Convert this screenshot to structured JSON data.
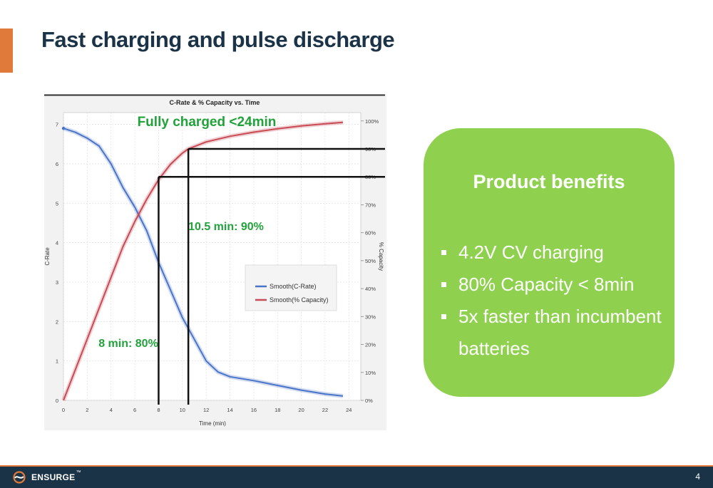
{
  "slide": {
    "title": "Fast charging and pulse discharge",
    "page_number": "4"
  },
  "colors": {
    "accent": "#e07a3a",
    "title": "#1b3346",
    "benefits_bg": "#8fd14f",
    "footer_bg": "#1b3346",
    "c_rate_series": "#4a74c9",
    "capacity_series": "#c84a55",
    "annotation_green": "#22a23a"
  },
  "chart_data": {
    "type": "line",
    "title": "C-Rate & % Capacity vs. Time",
    "xlabel": "Time (min)",
    "ylabel_left": "C-Rate",
    "ylabel_right": "% Capacity",
    "xlim": [
      0,
      25
    ],
    "ylim_left": [
      0,
      7.3
    ],
    "ylim_right": [
      0,
      1.03
    ],
    "x_ticks": [
      "0",
      "2",
      "4",
      "6",
      "8",
      "10",
      "12",
      "14",
      "16",
      "18",
      "20",
      "22",
      "24"
    ],
    "y_left_ticks": [
      "0",
      "1",
      "2",
      "3",
      "4",
      "5",
      "6",
      "7"
    ],
    "y_right_ticks": [
      "0%",
      "10%",
      "20%",
      "30%",
      "40%",
      "50%",
      "60%",
      "70%",
      "80%",
      "90%",
      "100%"
    ],
    "grid": true,
    "legend_position": "center-right",
    "series": [
      {
        "name": "Smooth(C-Rate)",
        "axis": "left",
        "x": [
          0,
          1,
          2,
          3,
          4,
          5,
          6,
          7,
          8,
          9,
          10,
          11,
          12,
          13,
          14,
          16,
          18,
          20,
          22,
          23.5
        ],
        "y": [
          6.9,
          6.8,
          6.65,
          6.45,
          6.0,
          5.4,
          4.9,
          4.3,
          3.5,
          2.8,
          2.1,
          1.55,
          1.0,
          0.72,
          0.6,
          0.5,
          0.38,
          0.26,
          0.16,
          0.11
        ]
      },
      {
        "name": "Smooth(% Capacity)",
        "axis": "right",
        "x": [
          0,
          1,
          2,
          3,
          4,
          5,
          6,
          7,
          8,
          9,
          10,
          10.5,
          12,
          14,
          16,
          18,
          20,
          22,
          23.5
        ],
        "y": [
          0.0,
          0.11,
          0.22,
          0.33,
          0.44,
          0.55,
          0.64,
          0.72,
          0.79,
          0.845,
          0.885,
          0.9,
          0.925,
          0.945,
          0.96,
          0.972,
          0.982,
          0.99,
          0.995
        ]
      }
    ],
    "markers": [
      {
        "label": "8 min: 80%",
        "x": 8,
        "capacity": 0.8
      },
      {
        "label": "10.5 min: 90%",
        "x": 10.5,
        "capacity": 0.9
      }
    ],
    "annotations": [
      "Fully charged <24min"
    ]
  },
  "benefits": {
    "title": "Product benefits",
    "items": [
      "4.2V CV charging",
      "80% Capacity < 8min",
      "5x faster than incumbent batteries"
    ]
  },
  "footer": {
    "logo_text": "ENSURGE",
    "logo_mark": "™"
  }
}
